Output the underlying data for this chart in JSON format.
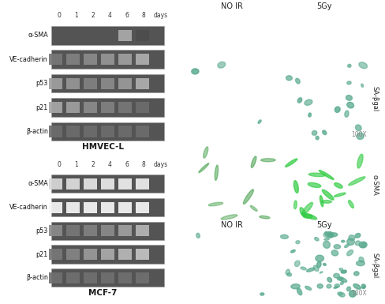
{
  "background_color": "#ffffff",
  "text_color": "#222222",
  "hmvec_label": "HMVEC-L",
  "mcf7_label": "MCF-7",
  "time_points": [
    "0",
    "1",
    "2",
    "4",
    "6",
    "8",
    "days"
  ],
  "bands": [
    "α-SMA",
    "VE-cadherin",
    "p53",
    "p21",
    "β-actin"
  ],
  "col_headers": [
    "NO IR",
    "5Gy"
  ],
  "row_labels_top": [
    "SA-βgal",
    "α-SMA"
  ],
  "row_label_bottom": "SA-βgal",
  "annotation_100x": "100X",
  "gel_bg": "#686868",
  "gel_bg_light": "#888888",
  "hmvec_intensities": {
    "α-SMA": [
      0.0,
      0.0,
      0.0,
      0.0,
      0.4,
      0.85
    ],
    "VE-cadherin": [
      0.65,
      0.6,
      0.55,
      0.5,
      0.45,
      0.38
    ],
    "p53": [
      0.45,
      0.5,
      0.6,
      0.55,
      0.48,
      0.38
    ],
    "p21": [
      0.42,
      0.45,
      0.55,
      0.6,
      0.65,
      0.7
    ],
    "β-actin": [
      0.7,
      0.7,
      0.7,
      0.7,
      0.7,
      0.7
    ]
  },
  "mcf7_intensities": {
    "α-SMA": [
      0.18,
      0.15,
      0.12,
      0.1,
      0.08,
      0.08
    ],
    "VE-cadherin": [
      0.04,
      0.04,
      0.04,
      0.04,
      0.04,
      0.04
    ],
    "p53": [
      0.55,
      0.65,
      0.6,
      0.55,
      0.45,
      0.35
    ],
    "p21": [
      0.65,
      0.58,
      0.48,
      0.4,
      0.33,
      0.28
    ],
    "β-actin": [
      0.68,
      0.68,
      0.68,
      0.68,
      0.68,
      0.68
    ]
  },
  "sa_bgal_hmvec_noir_dots": 3,
  "sa_bgal_hmvec_5gy_dots": 18,
  "sa_bgal_mcf7_noir_dots": 2,
  "sa_bgal_mcf7_5gy_dots": 55,
  "dot_color": "#5aaa90",
  "fluor_color_dim": "#1a8a22",
  "fluor_color_bright": "#33cc44",
  "sa_bgal_bg": "#f0ece0",
  "fluor_bg": "#050505"
}
